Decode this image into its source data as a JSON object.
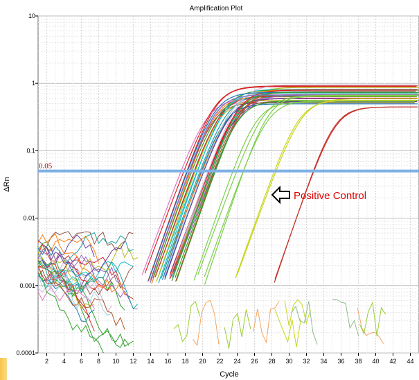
{
  "chart_data": {
    "type": "line",
    "title": "Amplification Plot",
    "xlabel": "Cycle",
    "ylabel": "ΔRn",
    "y_scale": "log",
    "xlim": [
      1,
      45
    ],
    "ylim": [
      0.0001,
      10
    ],
    "x_ticks": [
      "2",
      "4",
      "6",
      "8",
      "10",
      "12",
      "14",
      "16",
      "18",
      "20",
      "22",
      "24",
      "26",
      "28",
      "30",
      "32",
      "34",
      "36",
      "38",
      "40",
      "42",
      "44"
    ],
    "y_ticks": [
      "10",
      "1",
      "0.1",
      "0.01",
      "0.001",
      "0.0001"
    ],
    "grid": true,
    "threshold": {
      "value": 0.05,
      "label": "0.05",
      "color": "#7fb2e6"
    },
    "annotation": {
      "text": "Positive Control",
      "arrow": "left-outline-arrow",
      "color": "#e00000"
    },
    "series_groups": [
      {
        "group": "early-samples",
        "ct_range": [
          17.5,
          21.5
        ],
        "plateau_range": [
          0.45,
          0.95
        ],
        "count": 36
      },
      {
        "group": "mid-samples",
        "ct_range": [
          23.5,
          25.0
        ],
        "plateau_range": [
          0.45,
          0.7
        ],
        "count": 4
      },
      {
        "group": "late-yellow-samples",
        "ct_range": [
          28.3,
          28.6
        ],
        "plateau_range": [
          0.55,
          0.6
        ],
        "count": 2
      },
      {
        "group": "positive-control",
        "ct_range": [
          32.6,
          33.0
        ],
        "plateau_range": [
          0.42,
          0.46
        ],
        "count": 2
      }
    ],
    "colors": [
      "#1f77b4",
      "#2ca02c",
      "#d62728",
      "#9467bd",
      "#8c564b",
      "#e377c2",
      "#bcbd22",
      "#17becf",
      "#ff7f0e",
      "#1fa0a0",
      "#6a3d9a",
      "#33a02c",
      "#b15928",
      "#a6cee3",
      "#e31a1c",
      "#cab2d6"
    ]
  }
}
